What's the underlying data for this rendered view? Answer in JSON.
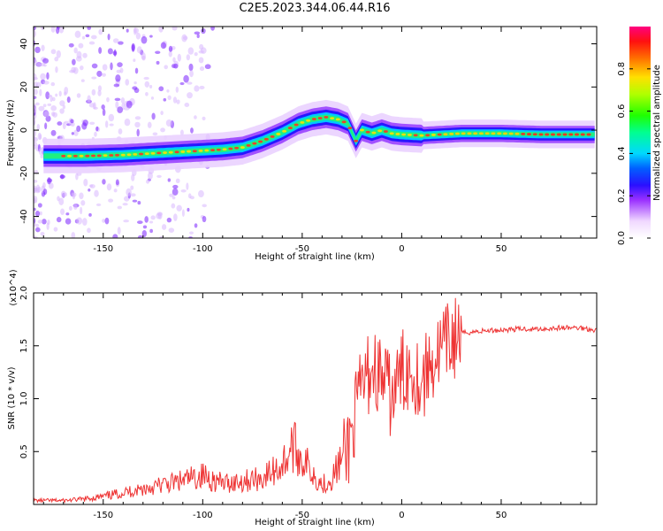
{
  "title": "C2E5.2023.344.06.44.R16",
  "chart_data": [
    {
      "type": "heatmap",
      "name": "spectrogram",
      "xlabel": "Height of straight line (km)",
      "ylabel": "Frequency (Hz)",
      "xlim": [
        -185,
        98
      ],
      "ylim": [
        -50,
        48
      ],
      "xticks": [
        -150,
        -100,
        -50,
        0,
        50
      ],
      "xtick_labels": [
        "-150",
        "-100",
        "-50",
        "0",
        "50"
      ],
      "yticks": [
        -40,
        -20,
        0,
        20,
        40
      ],
      "ytick_labels": [
        "-40",
        "-20",
        "0",
        "20",
        "40"
      ],
      "ridge": {
        "x": [
          -178,
          -160,
          -140,
          -120,
          -100,
          -90,
          -80,
          -70,
          -60,
          -52,
          -45,
          -38,
          -32,
          -27,
          -23,
          -20,
          -15,
          -10,
          -5,
          0,
          10,
          20,
          30,
          50,
          70,
          90,
          98
        ],
        "y": [
          -12,
          -12,
          -11.5,
          -10.5,
          -9.5,
          -9,
          -8,
          -5,
          -1,
          3,
          5,
          6,
          5,
          3,
          -5,
          0,
          -1.5,
          0,
          -1.5,
          -2,
          -2.5,
          -2,
          -1.5,
          -1.5,
          -2,
          -2,
          -2
        ]
      },
      "colorbar": {
        "label": "Normalized spectral amplitude",
        "ticks": [
          0.0,
          0.2,
          0.4,
          0.6,
          0.8
        ],
        "tick_labels": [
          "0.0",
          "0.2",
          "0.4",
          "0.6",
          "0.8"
        ],
        "range": [
          0,
          1
        ]
      }
    },
    {
      "type": "line",
      "name": "snr",
      "xlabel": "Height of straight line (km)",
      "ylabel": "SNR (10 * v/v)",
      "multiplier": "(x10^4)",
      "xlim": [
        -185,
        98
      ],
      "ylim": [
        0,
        2.0
      ],
      "xticks": [
        -150,
        -100,
        -50,
        0,
        50
      ],
      "xtick_labels": [
        "-150",
        "-100",
        "-50",
        "0",
        "50"
      ],
      "yticks": [
        0.5,
        1.0,
        1.5,
        2.0
      ],
      "ytick_labels": [
        "0.5",
        "1.0",
        "1.5",
        "2.0"
      ],
      "color": "#ee3333",
      "series": [
        {
          "name": "SNR",
          "x": [
            -185,
            -170,
            -160,
            -150,
            -140,
            -130,
            -120,
            -110,
            -100,
            -90,
            -80,
            -70,
            -60,
            -55,
            -50,
            -45,
            -40,
            -35,
            -30,
            -25,
            -20,
            -15,
            -10,
            -5,
            0,
            5,
            10,
            15,
            20,
            25,
            30,
            40,
            50,
            60,
            70,
            80,
            90,
            98
          ],
          "y": [
            0.03,
            0.03,
            0.04,
            0.06,
            0.09,
            0.12,
            0.15,
            0.18,
            0.22,
            0.16,
            0.18,
            0.2,
            0.3,
            0.45,
            0.35,
            0.25,
            0.15,
            0.2,
            0.35,
            0.7,
            1.1,
            1.3,
            1.2,
            1.0,
            1.25,
            1.3,
            1.15,
            1.35,
            1.45,
            1.55,
            1.62,
            1.64,
            1.65,
            1.66,
            1.66,
            1.67,
            1.67,
            1.65
          ]
        }
      ]
    }
  ]
}
